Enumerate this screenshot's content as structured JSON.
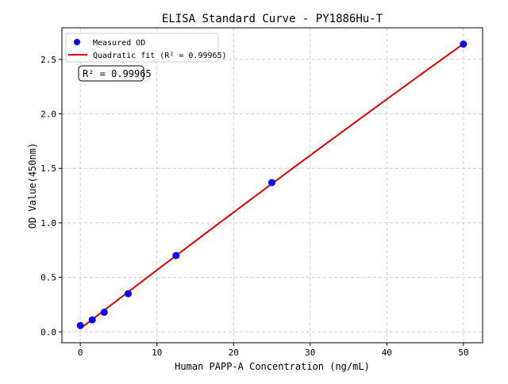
{
  "chart_data": {
    "type": "scatter",
    "title": "ELISA Standard Curve - PY1886Hu-T",
    "xlabel": "Human PAPP-A Concentration (ng/mL)",
    "ylabel": "OD Value(450nm)",
    "xlim": [
      -2.4,
      52.5
    ],
    "ylim": [
      -0.1,
      2.79
    ],
    "xticks": [
      0,
      10,
      20,
      30,
      40,
      50
    ],
    "yticks": [
      0.0,
      0.5,
      1.0,
      1.5,
      2.0,
      2.5
    ],
    "xtick_labels": [
      "0",
      "10",
      "20",
      "30",
      "40",
      "50"
    ],
    "ytick_labels": [
      "0.0",
      "0.5",
      "1.0",
      "1.5",
      "2.0",
      "2.5"
    ],
    "grid": true,
    "legend_position": "top-left",
    "series": [
      {
        "name": "Measured OD",
        "kind": "scatter",
        "color": "#0000ff",
        "x": [
          0,
          1.5625,
          3.125,
          6.25,
          12.5,
          25,
          50
        ],
        "y": [
          0.058,
          0.11,
          0.18,
          0.35,
          0.7,
          1.37,
          2.64
        ]
      },
      {
        "name": "Quadratic fit (R² = 0.99965)",
        "kind": "line",
        "color": "#dd0000",
        "fit": "quadratic"
      }
    ],
    "annotation": "R² = 0.99965"
  }
}
